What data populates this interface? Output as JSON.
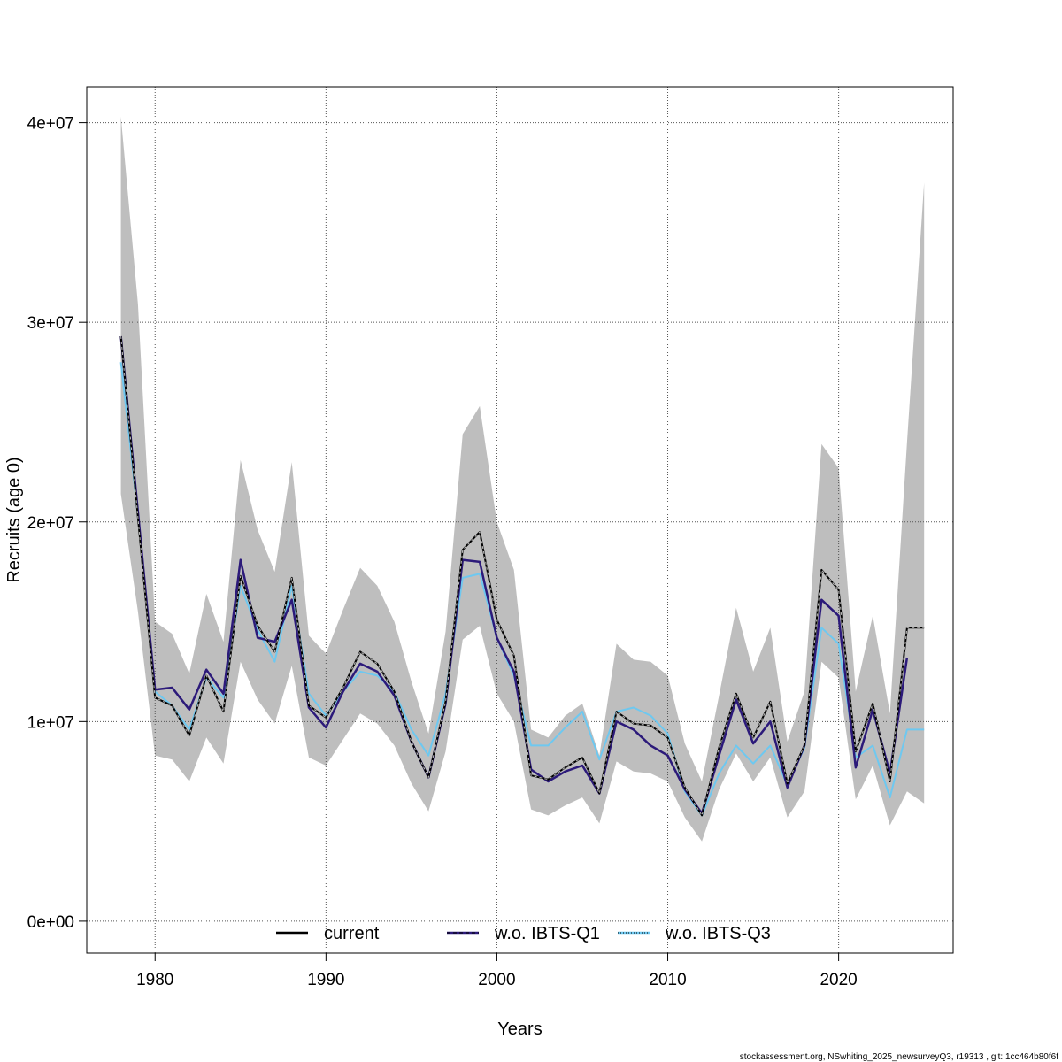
{
  "chart_data": {
    "type": "line",
    "xlabel": "Years",
    "ylabel": "Recruits (age 0)",
    "xlim": [
      1976,
      2026.7
    ],
    "ylim": [
      -1600000,
      41800000
    ],
    "x_ticks": [
      1980,
      1990,
      2000,
      2010,
      2020
    ],
    "x_tick_labels": [
      "1980",
      "1990",
      "2000",
      "2010",
      "2020"
    ],
    "y_ticks": [
      0,
      10000000,
      20000000,
      30000000,
      40000000
    ],
    "y_tick_labels": [
      "0e+00",
      "1e+07",
      "2e+07",
      "3e+07",
      "4e+07"
    ],
    "grid": true,
    "legend_position": "bottom",
    "x": [
      1978,
      1979,
      1980,
      1981,
      1982,
      1983,
      1984,
      1985,
      1986,
      1987,
      1988,
      1989,
      1990,
      1991,
      1992,
      1993,
      1994,
      1995,
      1996,
      1997,
      1998,
      1999,
      2000,
      2001,
      2002,
      2003,
      2004,
      2005,
      2006,
      2007,
      2008,
      2009,
      2010,
      2011,
      2012,
      2013,
      2014,
      2015,
      2016,
      2017,
      2018,
      2019,
      2020,
      2021,
      2022,
      2023,
      2024,
      2025
    ],
    "confidence_band": {
      "color": "#bebebe",
      "lower": [
        21400000,
        15500000,
        8300000,
        8100000,
        7000000,
        9200000,
        7900000,
        13000000,
        11100000,
        9900000,
        12800000,
        8200000,
        7800000,
        9100000,
        10400000,
        9900000,
        8800000,
        6900000,
        5500000,
        8500000,
        14100000,
        14800000,
        11400000,
        10000000,
        5600000,
        5300000,
        5800000,
        6200000,
        4900000,
        8000000,
        7500000,
        7400000,
        7000000,
        5200000,
        4000000,
        6600000,
        8400000,
        7000000,
        8200000,
        5200000,
        6500000,
        13000000,
        12200000,
        6100000,
        7800000,
        4800000,
        6500000,
        5900000
      ],
      "upper": [
        40300000,
        30900000,
        15000000,
        14400000,
        12400000,
        16400000,
        14000000,
        23100000,
        19600000,
        17500000,
        23000000,
        14300000,
        13400000,
        15600000,
        17700000,
        16800000,
        15000000,
        12000000,
        9400000,
        14500000,
        24400000,
        25800000,
        20000000,
        17600000,
        9600000,
        9200000,
        10300000,
        10900000,
        8300000,
        13900000,
        13100000,
        13000000,
        12300000,
        8900000,
        7000000,
        11300000,
        15700000,
        12500000,
        14700000,
        9000000,
        11500000,
        23900000,
        22700000,
        11500000,
        15300000,
        10400000,
        24000000,
        37000000
      ]
    },
    "series": [
      {
        "name": "current",
        "color": "#000000",
        "values": [
          29300000,
          20200000,
          11200000,
          10800000,
          9300000,
          12300000,
          10500000,
          17300000,
          14800000,
          13500000,
          17200000,
          10800000,
          10200000,
          11700000,
          13500000,
          12900000,
          11500000,
          9000000,
          7200000,
          11000000,
          18600000,
          19500000,
          15100000,
          13300000,
          7300000,
          7100000,
          7700000,
          8200000,
          6400000,
          10500000,
          9900000,
          9800000,
          9200000,
          6700000,
          5300000,
          8700000,
          11400000,
          9200000,
          11000000,
          6900000,
          8800000,
          17600000,
          16600000,
          8500000,
          10900000,
          7000000,
          14700000,
          14700000
        ]
      },
      {
        "name": "w.o. IBTS-Q1",
        "color": "#2c1a7a",
        "values": [
          29300000,
          20500000,
          11600000,
          11700000,
          10600000,
          12600000,
          11400000,
          18100000,
          14200000,
          14000000,
          16100000,
          10700000,
          9700000,
          11500000,
          12900000,
          12500000,
          11300000,
          9000000,
          7200000,
          10900000,
          18100000,
          18000000,
          14200000,
          12500000,
          7600000,
          7000000,
          7500000,
          7800000,
          6400000,
          10000000,
          9600000,
          8800000,
          8300000,
          6600000,
          5400000,
          8300000,
          11100000,
          8900000,
          10000000,
          6700000,
          8800000,
          16100000,
          15300000,
          7700000,
          10600000,
          7400000,
          13200000,
          null
        ]
      },
      {
        "name": "w.o. IBTS-Q3",
        "color": "#6ec8f0",
        "values": [
          28000000,
          20300000,
          11500000,
          10800000,
          9600000,
          12200000,
          11200000,
          16800000,
          14600000,
          13000000,
          16800000,
          11400000,
          10300000,
          11500000,
          12500000,
          12300000,
          11500000,
          9600000,
          8300000,
          11400000,
          17200000,
          17400000,
          14200000,
          12300000,
          8800000,
          8800000,
          9700000,
          10500000,
          8100000,
          10500000,
          10700000,
          10300000,
          9400000,
          6500000,
          5300000,
          7400000,
          8800000,
          7900000,
          8800000,
          6800000,
          8700000,
          14700000,
          13900000,
          8200000,
          8800000,
          6200000,
          9600000,
          9600000
        ]
      }
    ],
    "legend": [
      {
        "label": "current",
        "style": "solid-black"
      },
      {
        "label": "w.o. IBTS-Q1",
        "style": "purple-with-dash"
      },
      {
        "label": "w.o. IBTS-Q3",
        "style": "blue-with-dot"
      }
    ]
  },
  "footer": "stockassessment.org, NSwhiting_2025_newsurveyQ3, r19313 , git: 1cc464b80f6f"
}
